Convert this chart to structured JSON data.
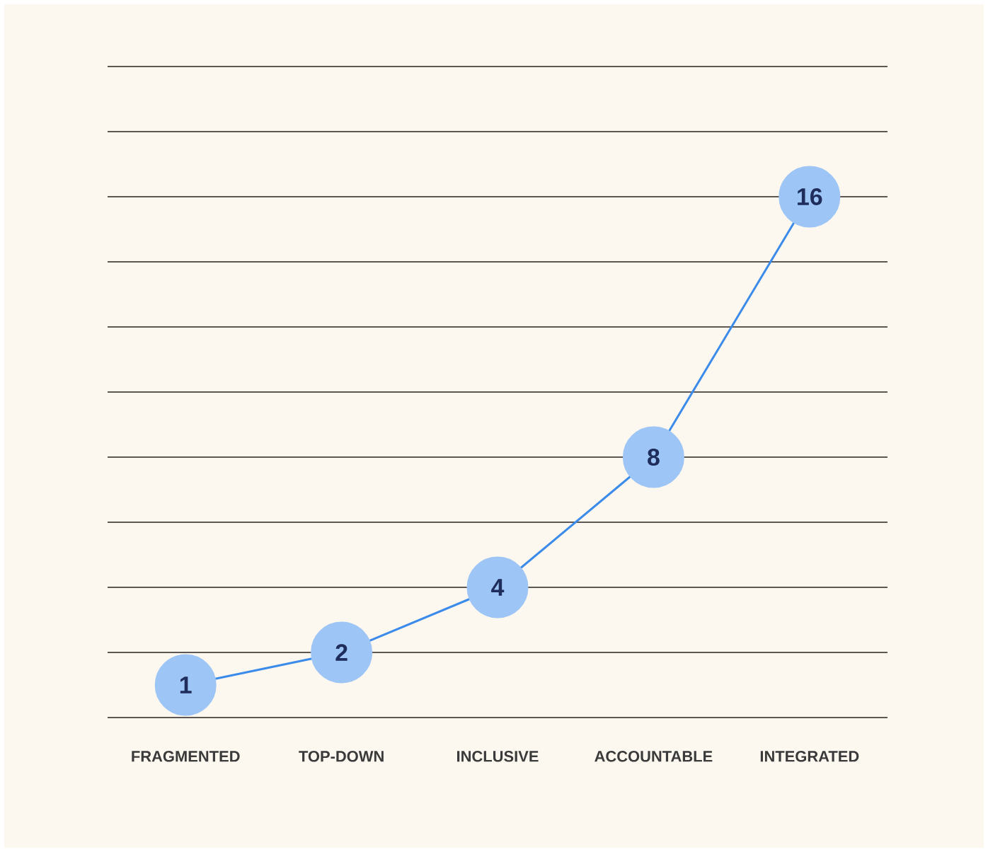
{
  "chart_data": {
    "type": "line",
    "categories": [
      "FRAGMENTED",
      "TOP-DOWN",
      "INCLUSIVE",
      "ACCOUNTABLE",
      "INTEGRATED"
    ],
    "values": [
      1,
      2,
      4,
      8,
      16
    ],
    "color": "#3b8beb",
    "ylim": [
      0,
      20
    ],
    "grid": "y",
    "tick_labels": "x",
    "data_labels": true,
    "marker": "circle",
    "line_style": "solid"
  }
}
